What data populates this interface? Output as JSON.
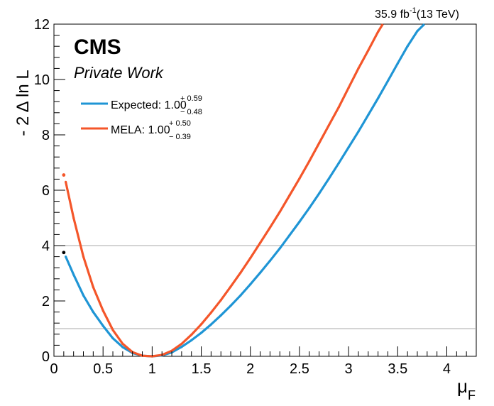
{
  "header": {
    "lumi": "35.9 fb",
    "lumi_sup": "-1",
    "energy": "(13 TeV)"
  },
  "labels": {
    "experiment": "CMS",
    "status": "Private Work"
  },
  "axes": {
    "ylabel": "- 2 Δ ln L",
    "xlabel_base": "μ",
    "xlabel_sub": "F"
  },
  "legend": [
    {
      "name": "Expected: 1.00",
      "up": "+ 0.59",
      "down": "− 0.48",
      "color": "#1f95d5"
    },
    {
      "name": "MELA: 1.00",
      "up": "+ 0.50",
      "down": "− 0.39",
      "color": "#f4562a"
    }
  ],
  "chart_data": {
    "type": "line",
    "xlim": [
      0,
      4.3
    ],
    "ylim": [
      0,
      12
    ],
    "xticks": [
      "0",
      "0.5",
      "1",
      "1.5",
      "2",
      "2.5",
      "3",
      "3.5",
      "4"
    ],
    "yticks": [
      "0",
      "2",
      "4",
      "6",
      "8",
      "10",
      "12"
    ],
    "reference_lines": [
      1,
      4
    ],
    "series": [
      {
        "name": "Expected: 1.00",
        "color": "#1f95d5",
        "x": [
          0.12,
          0.2,
          0.3,
          0.4,
          0.5,
          0.6,
          0.7,
          0.8,
          0.9,
          1.0,
          1.1,
          1.2,
          1.3,
          1.4,
          1.5,
          1.6,
          1.7,
          1.8,
          1.9,
          2.0,
          2.1,
          2.2,
          2.3,
          2.4,
          2.5,
          2.6,
          2.7,
          2.8,
          2.9,
          3.0,
          3.1,
          3.2,
          3.3,
          3.4,
          3.5,
          3.6,
          3.7,
          3.8,
          3.85
        ],
        "y": [
          3.6,
          2.95,
          2.2,
          1.6,
          1.1,
          0.65,
          0.33,
          0.12,
          0.02,
          0.0,
          0.03,
          0.14,
          0.34,
          0.58,
          0.85,
          1.15,
          1.48,
          1.83,
          2.2,
          2.6,
          3.02,
          3.45,
          3.9,
          4.38,
          4.86,
          5.36,
          5.88,
          6.42,
          6.98,
          7.55,
          8.12,
          8.72,
          9.32,
          9.95,
          10.58,
          11.2,
          11.75,
          12.1,
          12.3
        ]
      },
      {
        "name": "MELA: 1.00",
        "color": "#f4562a",
        "x": [
          0.12,
          0.2,
          0.3,
          0.4,
          0.5,
          0.6,
          0.7,
          0.8,
          0.9,
          1.0,
          1.1,
          1.2,
          1.3,
          1.4,
          1.5,
          1.6,
          1.7,
          1.8,
          1.9,
          2.0,
          2.1,
          2.2,
          2.3,
          2.4,
          2.5,
          2.6,
          2.7,
          2.8,
          2.9,
          3.0,
          3.1,
          3.2,
          3.3,
          3.4,
          3.5,
          3.6
        ],
        "y": [
          6.3,
          5.0,
          3.6,
          2.5,
          1.65,
          0.95,
          0.45,
          0.15,
          0.02,
          0.0,
          0.05,
          0.2,
          0.45,
          0.78,
          1.16,
          1.58,
          2.03,
          2.52,
          3.02,
          3.55,
          4.1,
          4.65,
          5.22,
          5.82,
          6.42,
          7.05,
          7.7,
          8.35,
          9.0,
          9.7,
          10.4,
          11.05,
          11.72,
          12.3,
          12.9,
          13.5
        ]
      }
    ],
    "extra_points": [
      {
        "x": 0.1,
        "y": 6.55,
        "color": "#f4562a"
      },
      {
        "x": 0.1,
        "y": 3.75,
        "color": "#000000"
      }
    ]
  }
}
